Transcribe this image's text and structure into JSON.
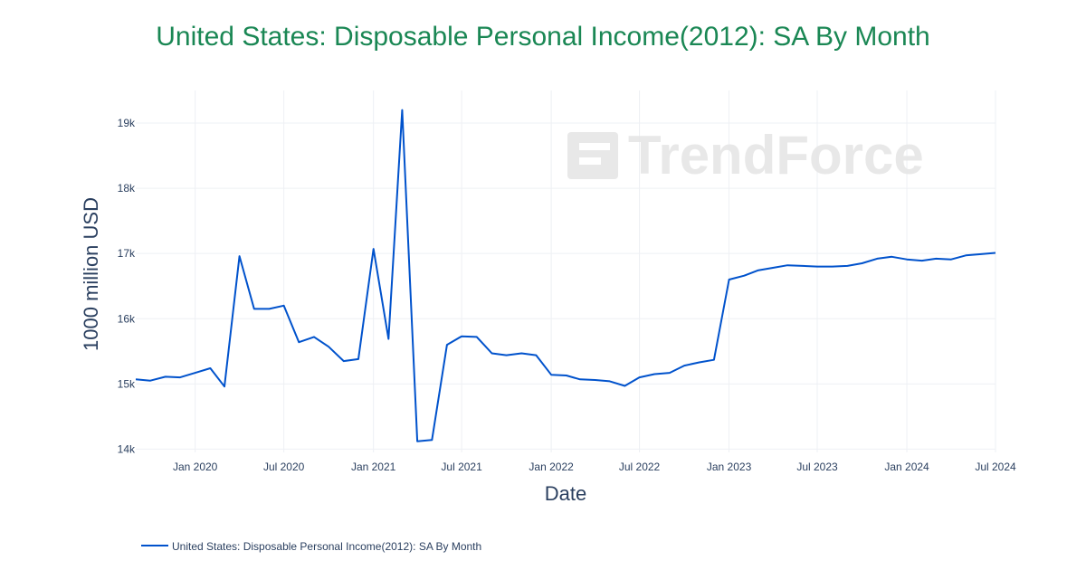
{
  "colors": {
    "title": "#1a8754",
    "series": "#0052cc",
    "grid": "#eef0f4",
    "text": "#2a3f5f",
    "watermark": "#e6e6e6"
  },
  "watermark": {
    "text": "TrendForce"
  },
  "chart_data": {
    "type": "line",
    "title": "United States: Disposable Personal Income(2012): SA By Month",
    "xlabel": "Date",
    "ylabel": "1000 million USD",
    "xlim": [
      "2019-09-01",
      "2024-07-01"
    ],
    "ylim": [
      13950,
      19500
    ],
    "yticks": [
      14000,
      15000,
      16000,
      17000,
      18000,
      19000
    ],
    "ytick_labels": [
      "14k",
      "15k",
      "16k",
      "17k",
      "18k",
      "19k"
    ],
    "xticks": [
      "2020-01-01",
      "2020-07-01",
      "2021-01-01",
      "2021-07-01",
      "2022-01-01",
      "2022-07-01",
      "2023-01-01",
      "2023-07-01",
      "2024-01-01",
      "2024-07-01"
    ],
    "xtick_labels": [
      "Jan 2020",
      "Jul 2020",
      "Jan 2021",
      "Jul 2021",
      "Jan 2022",
      "Jul 2022",
      "Jan 2023",
      "Jul 2023",
      "Jan 2024",
      "Jul 2024"
    ],
    "grid": true,
    "legend_position": "bottom-left",
    "series": [
      {
        "name": "United States: Disposable Personal Income(2012): SA By Month",
        "x": [
          "2019-09",
          "2019-10",
          "2019-11",
          "2019-12",
          "2020-01",
          "2020-02",
          "2020-03",
          "2020-04",
          "2020-05",
          "2020-06",
          "2020-07",
          "2020-08",
          "2020-09",
          "2020-10",
          "2020-11",
          "2020-12",
          "2021-01",
          "2021-02",
          "2021-03",
          "2021-04",
          "2021-05",
          "2021-06",
          "2021-07",
          "2021-08",
          "2021-09",
          "2021-10",
          "2021-11",
          "2021-12",
          "2022-01",
          "2022-02",
          "2022-03",
          "2022-04",
          "2022-05",
          "2022-06",
          "2022-07",
          "2022-08",
          "2022-09",
          "2022-10",
          "2022-11",
          "2022-12",
          "2023-01",
          "2023-02",
          "2023-03",
          "2023-04",
          "2023-05",
          "2023-06",
          "2023-07",
          "2023-08",
          "2023-09",
          "2023-10",
          "2023-11",
          "2023-12",
          "2024-01",
          "2024-02",
          "2024-03",
          "2024-04",
          "2024-05",
          "2024-06",
          "2024-07"
        ],
        "values": [
          15070,
          15050,
          15110,
          15100,
          15170,
          15240,
          14960,
          16960,
          16150,
          16150,
          16200,
          15640,
          15720,
          15570,
          15350,
          15380,
          17070,
          15690,
          19200,
          14120,
          14140,
          15600,
          15730,
          15720,
          15470,
          15440,
          15470,
          15440,
          15140,
          15130,
          15070,
          15060,
          15040,
          14970,
          15100,
          15150,
          15170,
          15280,
          15330,
          15370,
          16600,
          16660,
          16740,
          16780,
          16820,
          16810,
          16800,
          16800,
          16810,
          16850,
          16920,
          16950,
          16910,
          16890,
          16920,
          16910,
          16970,
          16990,
          17010
        ]
      }
    ]
  }
}
